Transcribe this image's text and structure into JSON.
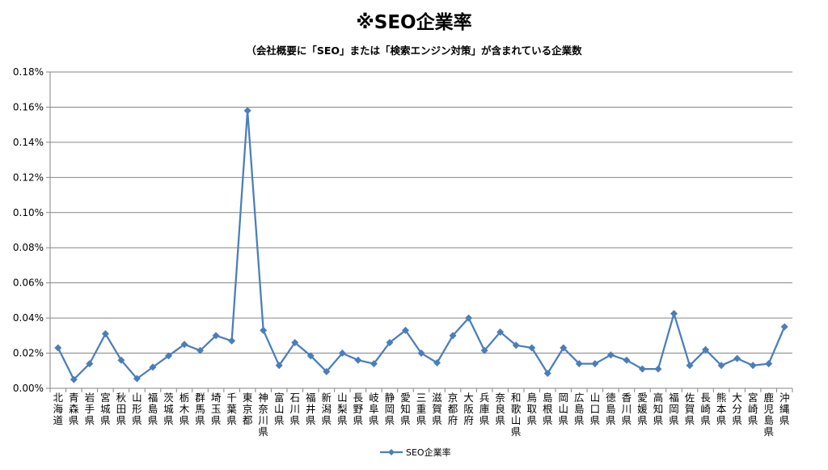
{
  "chart_data": {
    "type": "line",
    "title": "※SEO企業率",
    "subtitle": "（会社概要に「SEO」または「検索エンジン対策」が含まれている企業数",
    "ylim": [
      0,
      0.18
    ],
    "yticks": [
      "0.00%",
      "0.02%",
      "0.04%",
      "0.06%",
      "0.08%",
      "0.10%",
      "0.12%",
      "0.14%",
      "0.16%",
      "0.18%"
    ],
    "grid": true,
    "legend_position": "bottom",
    "color": "#4a7ebb",
    "categories": [
      "北海道",
      "青森県",
      "岩手県",
      "宮城県",
      "秋田県",
      "山形県",
      "福島県",
      "茨城県",
      "栃木県",
      "群馬県",
      "埼玉県",
      "千葉県",
      "東京都",
      "神奈川県",
      "富山県",
      "石川県",
      "福井県",
      "新潟県",
      "山梨県",
      "長野県",
      "岐阜県",
      "静岡県",
      "愛知県",
      "三重県",
      "滋賀県",
      "京都府",
      "大阪府",
      "兵庫県",
      "奈良県",
      "和歌山県",
      "鳥取県",
      "島根県",
      "岡山県",
      "広島県",
      "山口県",
      "徳島県",
      "香川県",
      "愛媛県",
      "高知県",
      "福岡県",
      "佐賀県",
      "長崎県",
      "熊本県",
      "大分県",
      "宮崎県",
      "鹿児島県",
      "沖縄県"
    ],
    "series": [
      {
        "name": "SEO企業率",
        "values": [
          0.023,
          0.005,
          0.014,
          0.031,
          0.016,
          0.0055,
          0.012,
          0.0185,
          0.025,
          0.0215,
          0.03,
          0.027,
          0.158,
          0.033,
          0.013,
          0.026,
          0.0185,
          0.0095,
          0.02,
          0.016,
          0.014,
          0.026,
          0.033,
          0.02,
          0.0145,
          0.03,
          0.04,
          0.0215,
          0.032,
          0.0245,
          0.023,
          0.0085,
          0.023,
          0.014,
          0.014,
          0.019,
          0.016,
          0.011,
          0.011,
          0.0425,
          0.013,
          0.022,
          0.013,
          0.017,
          0.013,
          0.014,
          0.035
        ]
      }
    ]
  }
}
